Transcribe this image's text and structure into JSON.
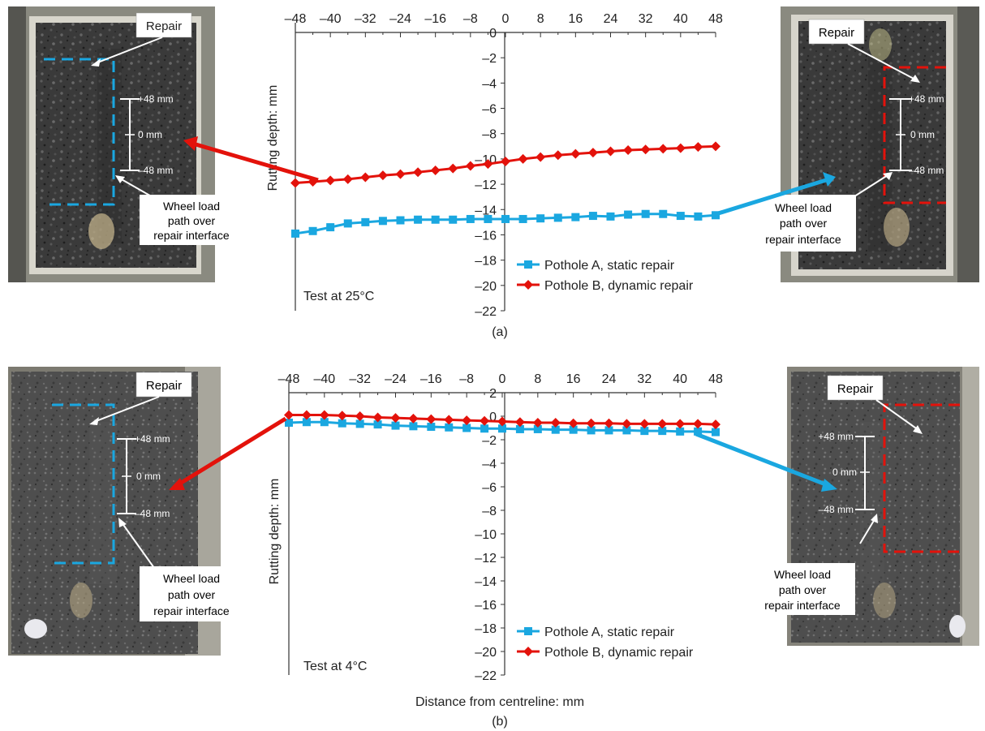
{
  "chart_data": [
    {
      "type": "line",
      "panel_label": "(a)",
      "annotation": "Test at 25°C",
      "ylabel": "Rutting depth: mm",
      "xlabel": "",
      "xlim": [
        -48,
        48
      ],
      "ylim": [
        -22,
        0
      ],
      "x_ticks": [
        "–48",
        "–40",
        "–32",
        "–24",
        "–16",
        "–8",
        "0",
        "8",
        "16",
        "24",
        "32",
        "40",
        "48"
      ],
      "y_ticks": [
        "0",
        "–2",
        "–4",
        "–6",
        "–8",
        "–10",
        "–12",
        "–14",
        "–16",
        "–18",
        "–20",
        "–22"
      ],
      "x_tick_values": [
        -48,
        -40,
        -32,
        -24,
        -16,
        -8,
        0,
        8,
        16,
        24,
        32,
        40,
        48
      ],
      "y_tick_values": [
        0,
        -2,
        -4,
        -6,
        -8,
        -10,
        -12,
        -14,
        -16,
        -18,
        -20,
        -22
      ],
      "x": [
        -48,
        -44,
        -40,
        -36,
        -32,
        -28,
        -24,
        -20,
        -16,
        -12,
        -8,
        -4,
        0,
        4,
        8,
        12,
        16,
        20,
        24,
        28,
        32,
        36,
        40,
        44,
        48
      ],
      "series": [
        {
          "name": "Pothole A, static repair",
          "color": "#1aa7e0",
          "marker": "square",
          "values": [
            -15.9,
            -15.7,
            -15.4,
            -15.1,
            -15.0,
            -14.9,
            -14.85,
            -14.8,
            -14.8,
            -14.8,
            -14.75,
            -14.75,
            -14.75,
            -14.75,
            -14.7,
            -14.65,
            -14.6,
            -14.5,
            -14.55,
            -14.4,
            -14.35,
            -14.35,
            -14.5,
            -14.55,
            -14.45
          ]
        },
        {
          "name": "Pothole B, dynamic repair",
          "color": "#e3120b",
          "marker": "diamond",
          "values": [
            -11.9,
            -11.8,
            -11.7,
            -11.6,
            -11.45,
            -11.3,
            -11.2,
            -11.05,
            -10.9,
            -10.75,
            -10.55,
            -10.4,
            -10.2,
            -10.0,
            -9.85,
            -9.7,
            -9.6,
            -9.5,
            -9.4,
            -9.3,
            -9.25,
            -9.2,
            -9.15,
            -9.05,
            -9.0
          ]
        }
      ]
    },
    {
      "type": "line",
      "panel_label": "(b)",
      "annotation": "Test at 4°C",
      "ylabel": "Rutting depth: mm",
      "xlabel": "Distance from centreline: mm",
      "xlim": [
        -48,
        48
      ],
      "ylim": [
        -22,
        2
      ],
      "x_ticks": [
        "–48",
        "–40",
        "–32",
        "–24",
        "–16",
        "–8",
        "0",
        "8",
        "16",
        "24",
        "32",
        "40",
        "48"
      ],
      "y_ticks": [
        "2",
        "0",
        "–2",
        "–4",
        "–6",
        "–8",
        "–10",
        "–12",
        "–14",
        "–16",
        "–18",
        "–20",
        "–22"
      ],
      "x_tick_values": [
        -48,
        -40,
        -32,
        -24,
        -16,
        -8,
        0,
        8,
        16,
        24,
        32,
        40,
        48
      ],
      "y_tick_values": [
        2,
        0,
        -2,
        -4,
        -6,
        -8,
        -10,
        -12,
        -14,
        -16,
        -18,
        -20,
        -22
      ],
      "x": [
        -48,
        -44,
        -40,
        -36,
        -32,
        -28,
        -24,
        -20,
        -16,
        -12,
        -8,
        -4,
        0,
        4,
        8,
        12,
        16,
        20,
        24,
        28,
        32,
        36,
        40,
        44,
        48
      ],
      "series": [
        {
          "name": "Pothole A, static repair",
          "color": "#1aa7e0",
          "marker": "square",
          "values": [
            -0.55,
            -0.5,
            -0.5,
            -0.6,
            -0.65,
            -0.7,
            -0.8,
            -0.85,
            -0.9,
            -0.95,
            -1.0,
            -1.05,
            -1.05,
            -1.1,
            -1.1,
            -1.15,
            -1.15,
            -1.2,
            -1.2,
            -1.2,
            -1.25,
            -1.25,
            -1.3,
            -1.3,
            -1.35
          ]
        },
        {
          "name": "Pothole B, dynamic repair",
          "color": "#e3120b",
          "marker": "diamond",
          "values": [
            0.1,
            0.1,
            0.1,
            0.05,
            0.0,
            -0.1,
            -0.15,
            -0.2,
            -0.25,
            -0.3,
            -0.35,
            -0.4,
            -0.45,
            -0.5,
            -0.55,
            -0.55,
            -0.6,
            -0.6,
            -0.6,
            -0.65,
            -0.65,
            -0.65,
            -0.65,
            -0.65,
            -0.7
          ]
        }
      ]
    }
  ],
  "photos": {
    "a_left": {
      "repair": "Repair",
      "plus": "+48 mm",
      "zero": "0 mm",
      "minus": "–48 mm",
      "wheel": [
        "Wheel load",
        "path over",
        "repair interface"
      ],
      "box_color": "#1aa7e0"
    },
    "a_right": {
      "repair": "Repair",
      "plus": "+48 mm",
      "zero": "0 mm",
      "minus": "–48 mm",
      "wheel": [
        "Wheel load",
        "path over",
        "repair interface"
      ],
      "box_color": "#e3120b"
    },
    "b_left": {
      "repair": "Repair",
      "plus": "+48 mm",
      "zero": "0 mm",
      "minus": "–48 mm",
      "wheel": [
        "Wheel load",
        "path over",
        "repair interface"
      ],
      "box_color": "#1aa7e0"
    },
    "b_right": {
      "repair": "Repair",
      "plus": "+48 mm",
      "zero": "0 mm",
      "minus": "–48 mm",
      "wheel": [
        "Wheel load",
        "path over",
        "repair interface"
      ],
      "box_color": "#e3120b"
    }
  }
}
